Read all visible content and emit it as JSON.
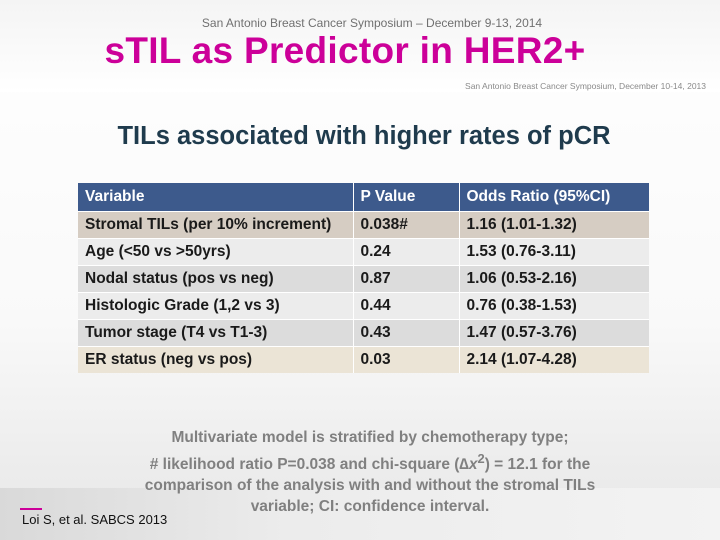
{
  "header": {
    "symposium_top": "San Antonio Breast Cancer Symposium – December 9-13, 2014",
    "title": "sTIL as Predictor in HER2+",
    "symposium_small": "San Antonio Breast Cancer Symposium, December 10-14, 2013"
  },
  "subtitle": "TILs associated with higher rates of pCR",
  "table": {
    "columns": [
      "Variable",
      "P Value",
      "Odds Ratio (95%CI)"
    ],
    "rows": [
      {
        "variable": "Stromal TILs (per 10% increment)",
        "p_value": "0.038#",
        "odds_ratio": "1.16 (1.01-1.32)"
      },
      {
        "variable": "Age (<50 vs >50yrs)",
        "p_value": "0.24",
        "odds_ratio": "1.53 (0.76-3.11)"
      },
      {
        "variable": "Nodal status (pos vs neg)",
        "p_value": "0.87",
        "odds_ratio": "1.06 (0.53-2.16)"
      },
      {
        "variable": "Histologic Grade (1,2 vs 3)",
        "p_value": "0.44",
        "odds_ratio": "0.76 (0.38-1.53)"
      },
      {
        "variable": "Tumor stage (T4 vs T1-3)",
        "p_value": "0.43",
        "odds_ratio": "1.47 (0.57-3.76)"
      },
      {
        "variable": "ER status (neg vs  pos)",
        "p_value": "0.03",
        "odds_ratio": "2.14 (1.07-4.28)"
      }
    ]
  },
  "footnote": {
    "line1": "Multivariate model is stratified by chemotherapy type;",
    "line2_prefix": "# likelihood ratio P=0.038 and chi-square (",
    "delta": "∆x",
    "sup": "2",
    "line2_suffix": ") = 12.1 for the",
    "line3": "comparison of the analysis with and without the stromal TILs",
    "line4": "variable; CI: confidence interval."
  },
  "citation": "Loi S, et al. SABCS 2013"
}
